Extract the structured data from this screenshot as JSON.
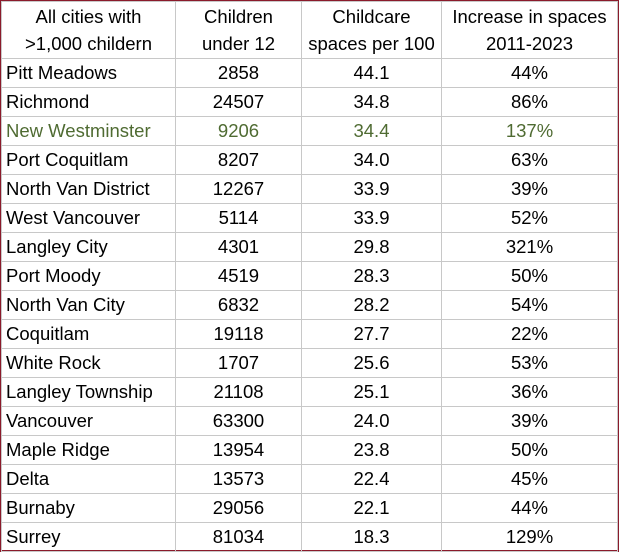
{
  "table": {
    "headers": [
      [
        "All cities with",
        ">1,000 childern"
      ],
      [
        "Children",
        "under 12"
      ],
      [
        "Childcare",
        "spaces per 100"
      ],
      [
        "Increase in spaces",
        "2011-2023"
      ]
    ],
    "rows": [
      {
        "city": "Pitt Meadows",
        "children": "2858",
        "spaces": "44.1",
        "increase": "44%"
      },
      {
        "city": "Richmond",
        "children": "24507",
        "spaces": "34.8",
        "increase": "86%"
      },
      {
        "city": "New Westminster",
        "children": "9206",
        "spaces": "34.4",
        "increase": "137%",
        "highlight": true
      },
      {
        "city": "Port Coquitlam",
        "children": "8207",
        "spaces": "34.0",
        "increase": "63%"
      },
      {
        "city": "North Van District",
        "children": "12267",
        "spaces": "33.9",
        "increase": "39%"
      },
      {
        "city": "West Vancouver",
        "children": "5114",
        "spaces": "33.9",
        "increase": "52%"
      },
      {
        "city": "Langley City",
        "children": "4301",
        "spaces": "29.8",
        "increase": "321%"
      },
      {
        "city": "Port Moody",
        "children": "4519",
        "spaces": "28.3",
        "increase": "50%"
      },
      {
        "city": "North Van City",
        "children": "6832",
        "spaces": "28.2",
        "increase": "54%"
      },
      {
        "city": "Coquitlam",
        "children": "19118",
        "spaces": "27.7",
        "increase": "22%"
      },
      {
        "city": "White Rock",
        "children": "1707",
        "spaces": "25.6",
        "increase": "53%"
      },
      {
        "city": "Langley Township",
        "children": "21108",
        "spaces": "25.1",
        "increase": "36%"
      },
      {
        "city": "Vancouver",
        "children": "63300",
        "spaces": "24.0",
        "increase": "39%"
      },
      {
        "city": "Maple Ridge",
        "children": "13954",
        "spaces": "23.8",
        "increase": "50%"
      },
      {
        "city": "Delta",
        "children": "13573",
        "spaces": "22.4",
        "increase": "45%"
      },
      {
        "city": "Burnaby",
        "children": "29056",
        "spaces": "22.1",
        "increase": "44%"
      },
      {
        "city": "Surrey",
        "children": "81034",
        "spaces": "18.3",
        "increase": "129%"
      }
    ]
  },
  "colors": {
    "border": "#8b1a2b",
    "highlight_text": "#4f6b32",
    "grid": "#c8c8c8"
  }
}
